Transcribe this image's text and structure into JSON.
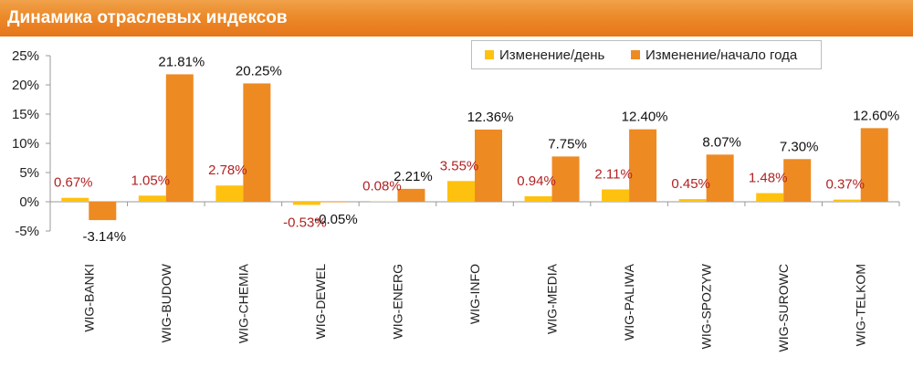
{
  "header": {
    "title": "Динамика отраслевых индексов"
  },
  "colors": {
    "header": "#ec8a2a",
    "daily": "#ffc10f",
    "ytd": "#ee8a22",
    "daily_label": "#b22222",
    "ytd_label": "#111111"
  },
  "legend": {
    "daily": "Изменение/день",
    "ytd": "Изменение/начало года"
  },
  "chart_data": {
    "type": "bar",
    "title": "Динамика отраслевых индексов",
    "categories": [
      "WIG-BANKI",
      "WIG-BUDOW",
      "WIG-CHEMIA",
      "WIG-DEWEL",
      "WIG-ENERG",
      "WIG-INFO",
      "WIG-MEDIA",
      "WIG-PALIWA",
      "WIG-SPOZYW",
      "WIG-SUROWC",
      "WIG-TELKOM"
    ],
    "series": [
      {
        "name": "Изменение/день",
        "values": [
          0.67,
          1.05,
          2.78,
          -0.53,
          0.08,
          3.55,
          0.94,
          2.11,
          0.45,
          1.48,
          0.37
        ],
        "labels": [
          "0.67%",
          "1.05%",
          "2.78%",
          "-0.53%",
          "0.08%",
          "3.55%",
          "0.94%",
          "2.11%",
          "0.45%",
          "1.48%",
          "0.37%"
        ]
      },
      {
        "name": "Изменение/начало года",
        "values": [
          -3.14,
          21.81,
          20.25,
          -0.05,
          2.21,
          12.36,
          7.75,
          12.4,
          8.07,
          7.3,
          12.6
        ],
        "labels": [
          "-3.14%",
          "21.81%",
          "20.25%",
          "-0.05%",
          "2.21%",
          "12.36%",
          "7.75%",
          "12.40%",
          "8.07%",
          "7.30%",
          "12.60%"
        ]
      }
    ],
    "yticks": [
      "-5%",
      "0%",
      "5%",
      "10%",
      "15%",
      "20%",
      "25%"
    ],
    "ylim": [
      -5,
      25
    ],
    "xlabel": "",
    "ylabel": "",
    "legend_position": "top-right"
  }
}
